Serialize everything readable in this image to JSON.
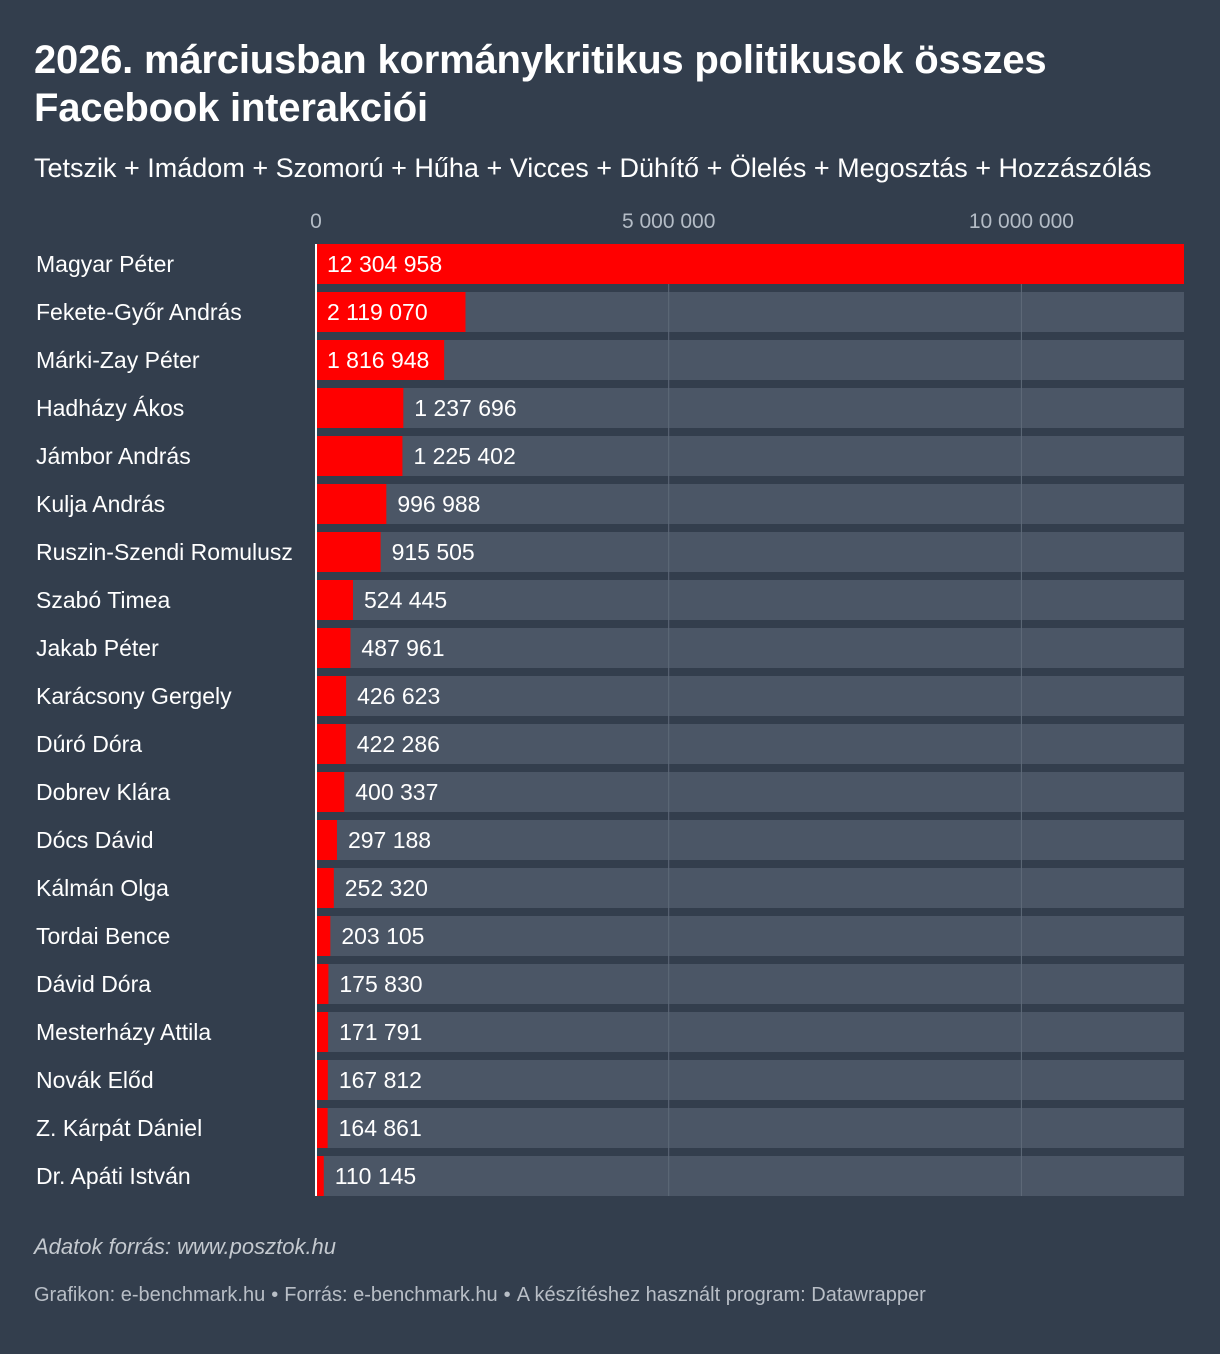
{
  "title": "2026. márciusban kormánykritikus politikusok összes Facebook interakciói",
  "subtitle": "Tetszik + Imádom + Szomorú + Hűha + Vicces + Dühítő + Ölelés + Megosztás + Hozzászólás",
  "notes": "Adatok forrás: www.posztok.hu",
  "footer": {
    "chart_credit": "Grafikon: e-benchmark.hu",
    "source": "Forrás: e-benchmark.hu",
    "tool": "A készítéshez használt program: Datawrapper",
    "separator": "•"
  },
  "colors": {
    "background": "#333e4d",
    "bar": "#ff0000",
    "track": "#4b5666",
    "gridline": "#5f6a79"
  },
  "chart_data": {
    "type": "bar",
    "orientation": "horizontal",
    "title": "2026. márciusban kormánykritikus politikusok összes Facebook interakciói",
    "subtitle": "Tetszik + Imádom + Szomorú + Hűha + Vicces + Dühítő + Ölelés + Megosztás + Hozzászólás",
    "xlim": [
      0,
      12304958
    ],
    "ticks": [
      {
        "value": 0,
        "label": "0"
      },
      {
        "value": 5000000,
        "label": "5 000 000"
      },
      {
        "value": 10000000,
        "label": "10 000 000"
      }
    ],
    "grid": true,
    "categories": [
      "Magyar Péter",
      "Fekete-Győr András",
      "Márki-Zay Péter",
      "Hadházy Ákos",
      "Jámbor András",
      "Kulja András",
      "Ruszin-Szendi Romulusz",
      "Szabó Timea",
      "Jakab Péter",
      "Karácsony Gergely",
      "Dúró Dóra",
      "Dobrev Klára",
      "Dócs Dávid",
      "Kálmán Olga",
      "Tordai Bence",
      "Dávid Dóra",
      "Mesterházy Attila",
      "Novák Előd",
      "Z. Kárpát Dániel",
      "Dr. Apáti István"
    ],
    "values": [
      12304958,
      2119070,
      1816948,
      1237696,
      1225402,
      996988,
      915505,
      524445,
      487961,
      426623,
      422286,
      400337,
      297188,
      252320,
      203105,
      175830,
      171791,
      167812,
      164861,
      110145
    ],
    "value_labels": [
      "12 304 958",
      "2 119 070",
      "1 816 948",
      "1 237 696",
      "1 225 402",
      "996 988",
      "915 505",
      "524 445",
      "487 961",
      "426 623",
      "422 286",
      "400 337",
      "297 188",
      "252 320",
      "203 105",
      "175 830",
      "171 791",
      "167 812",
      "164 861",
      "110 145"
    ]
  }
}
